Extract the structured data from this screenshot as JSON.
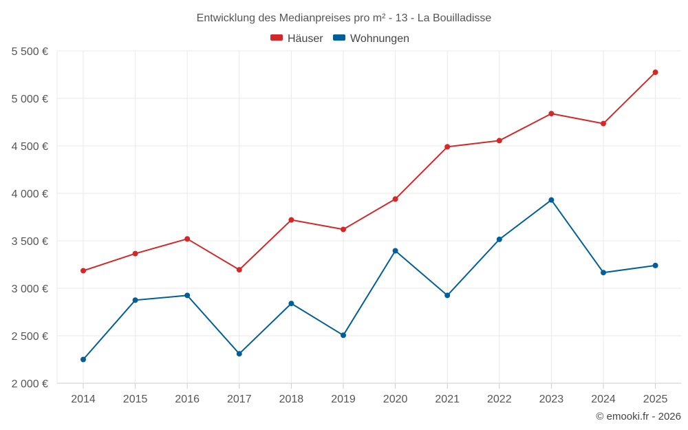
{
  "chart_data": {
    "type": "line",
    "title": "Entwicklung des Medianpreises pro m² - 13 - La Bouilladisse",
    "categories": [
      "2014",
      "2015",
      "2016",
      "2017",
      "2018",
      "2019",
      "2020",
      "2021",
      "2022",
      "2023",
      "2024",
      "2025"
    ],
    "series": [
      {
        "name": "Häuser",
        "color": "#d62728",
        "values": [
          3185,
          3365,
          3520,
          3195,
          3720,
          3620,
          3940,
          4490,
          4555,
          4840,
          4735,
          5275
        ]
      },
      {
        "name": "Wohnungen",
        "color": "#005f99",
        "values": [
          2250,
          2875,
          2925,
          2310,
          2840,
          2505,
          3395,
          2925,
          3515,
          3930,
          3165,
          3240
        ]
      }
    ],
    "y_ticks": [
      "2 000 €",
      "2 500 €",
      "3 000 €",
      "3 500 €",
      "4 000 €",
      "4 500 €",
      "5 000 €",
      "5 500 €"
    ],
    "y_tick_values": [
      2000,
      2500,
      3000,
      3500,
      4000,
      4500,
      5000,
      5500
    ],
    "ylim": [
      2000,
      5500
    ],
    "xlabel": "",
    "ylabel": "",
    "grid": true,
    "legend_position": "top-center"
  },
  "credit": "© emooki.fr - 2026"
}
